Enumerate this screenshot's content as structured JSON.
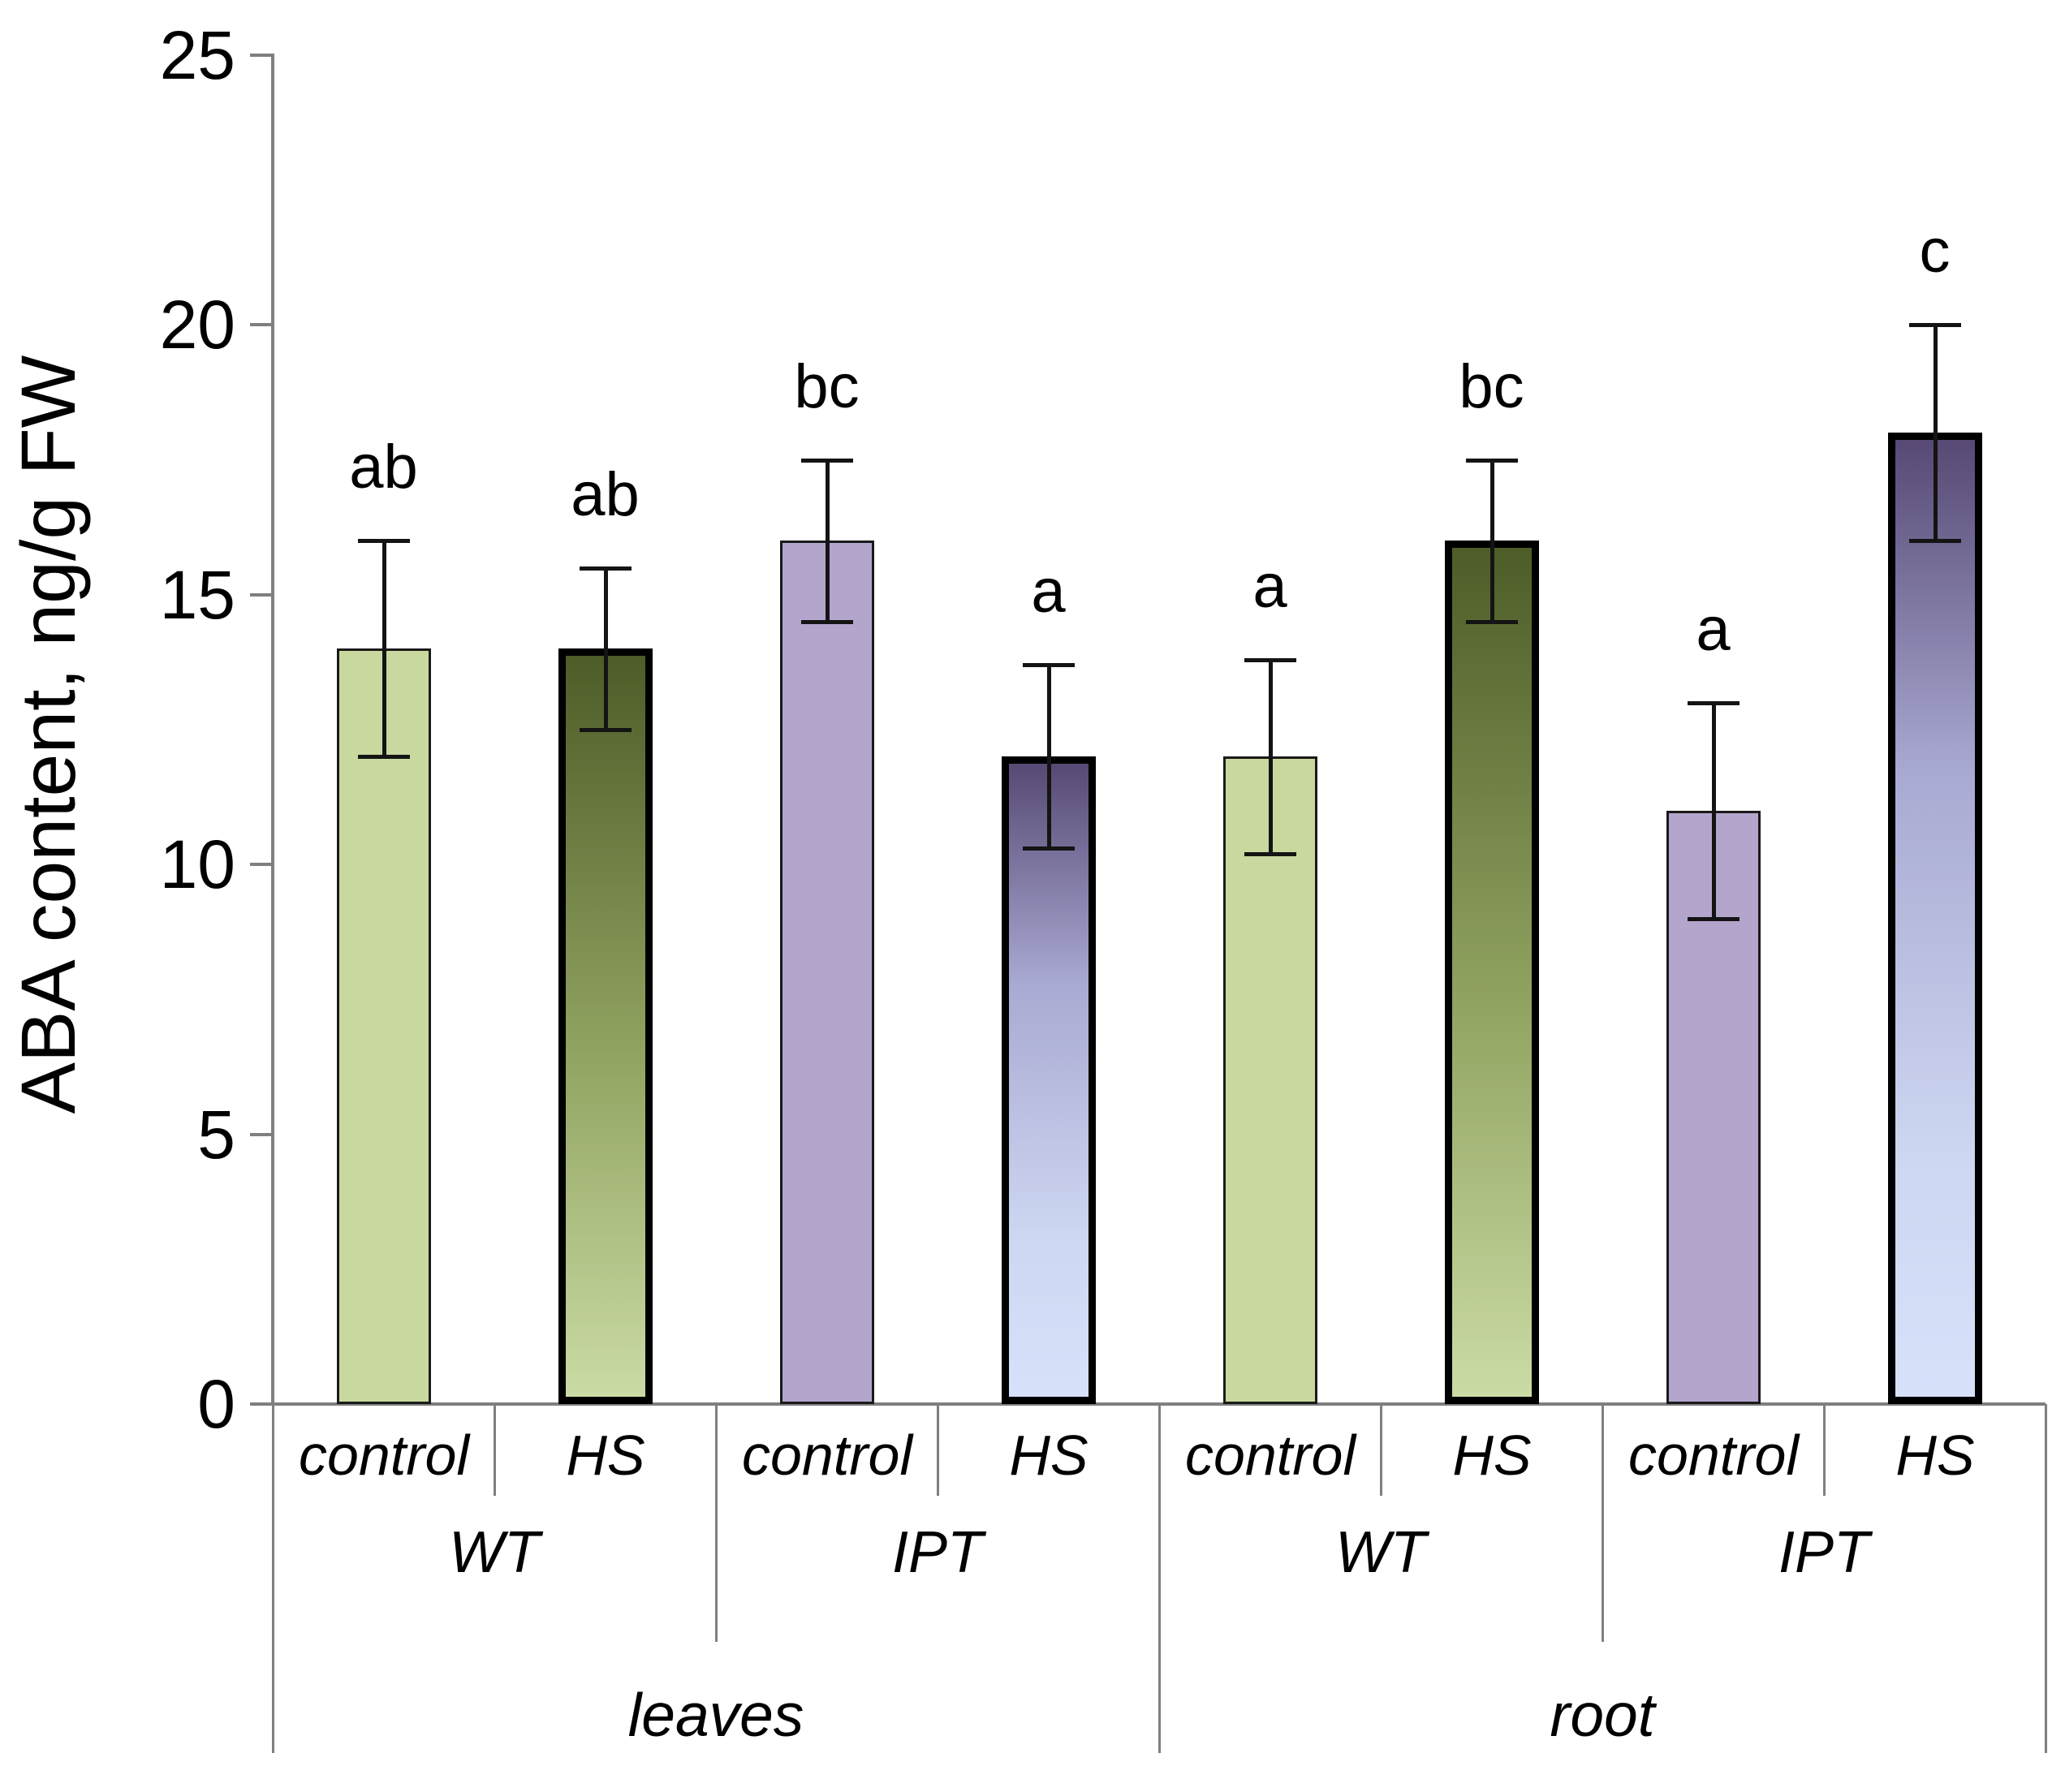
{
  "chart_data": {
    "type": "bar",
    "title": "",
    "ylabel": "ABA content, ng/g FW",
    "xlabel": "",
    "ylim": [
      0,
      25
    ],
    "yticks": [
      0,
      5,
      10,
      15,
      20,
      25
    ],
    "grid": false,
    "legend": "none",
    "categories": [
      {
        "tissue": "leaves",
        "genotype": "WT",
        "treatment": "control"
      },
      {
        "tissue": "leaves",
        "genotype": "WT",
        "treatment": "HS"
      },
      {
        "tissue": "leaves",
        "genotype": "IPT",
        "treatment": "control"
      },
      {
        "tissue": "leaves",
        "genotype": "IPT",
        "treatment": "HS"
      },
      {
        "tissue": "root",
        "genotype": "WT",
        "treatment": "control"
      },
      {
        "tissue": "root",
        "genotype": "WT",
        "treatment": "HS"
      },
      {
        "tissue": "root",
        "genotype": "IPT",
        "treatment": "control"
      },
      {
        "tissue": "root",
        "genotype": "IPT",
        "treatment": "HS"
      }
    ],
    "values": [
      14,
      14,
      16,
      12,
      12,
      16,
      11,
      18
    ],
    "errors": [
      2,
      1.5,
      1.5,
      1.7,
      1.8,
      1.5,
      2,
      2
    ],
    "sig_letters": [
      "ab",
      "ab",
      "bc",
      "a",
      "a",
      "bc",
      "a",
      "c"
    ],
    "bar_styles": [
      "green-flat",
      "green-grad",
      "purple-flat",
      "purple-grad",
      "green-flat",
      "green-grad",
      "purple-flat",
      "purple-grad"
    ],
    "axis_rows": {
      "treatments": [
        "control",
        "HS",
        "control",
        "HS",
        "control",
        "HS",
        "control",
        "HS"
      ],
      "genotypes": [
        "WT",
        "IPT",
        "WT",
        "IPT"
      ],
      "tissues": [
        "leaves",
        "root"
      ]
    }
  },
  "palette": {
    "green_flat": "#c8d89e",
    "green_grad_top": "#4e5c28",
    "green_grad_mid": "#93a562",
    "green_grad_bottom": "#cbdba5",
    "purple_flat": "#b4a5cc",
    "purple_grad_top": "#574974",
    "purple_grad_mid": "#a9aad2",
    "purple_grad_mid2": "#cdd7f1",
    "purple_grad_bottom": "#d8e1fa",
    "axis_gray": "#7f7f7f",
    "ink": "#000000"
  }
}
